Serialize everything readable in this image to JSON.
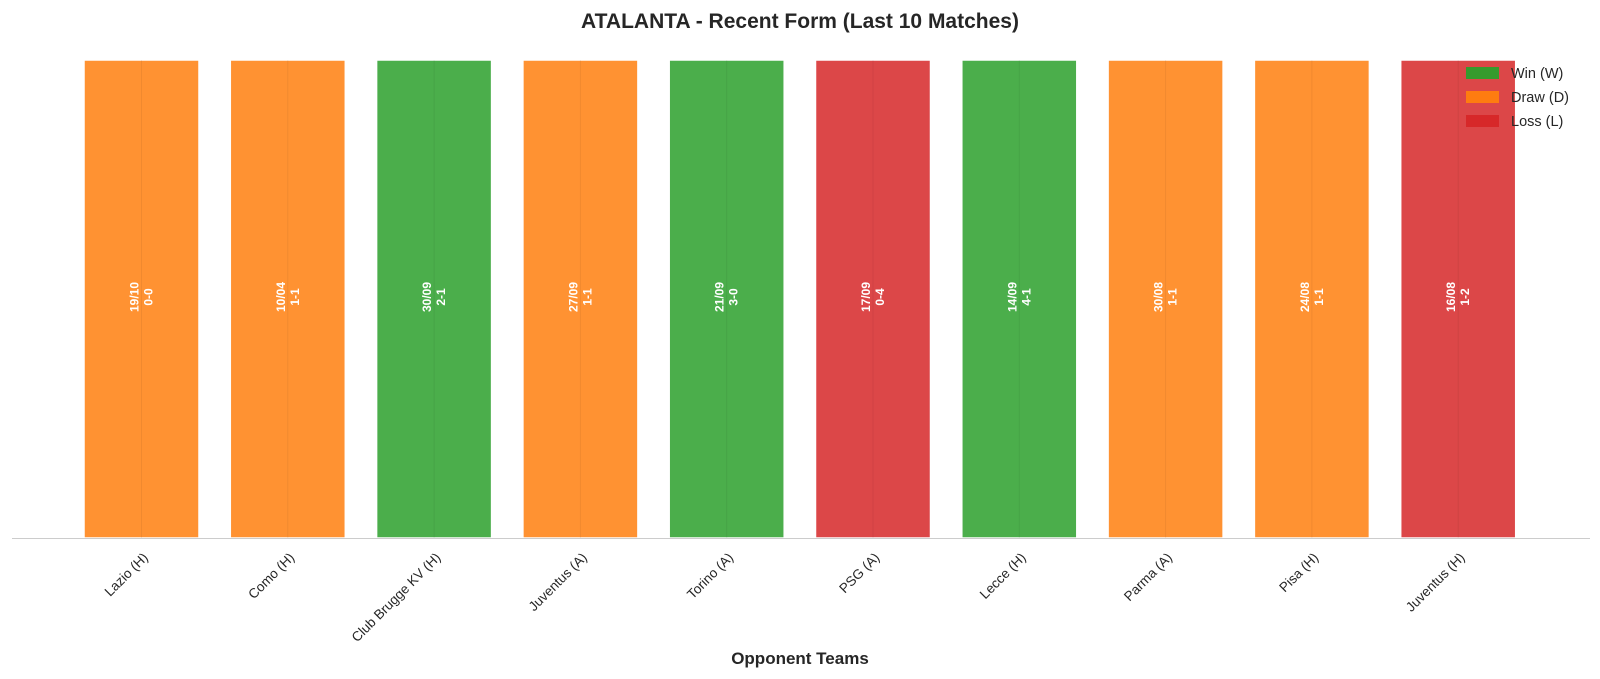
{
  "chart_data": {
    "type": "bar",
    "title": "ATALANTA - Recent Form (Last 10 Matches)",
    "xlabel": "Opponent Teams",
    "ylabel": "",
    "ylim": [
      0,
      1
    ],
    "grid": false,
    "legend_position": "top-right",
    "categories": [
      "Lazio (H)",
      "Como (H)",
      "Club Brugge KV (H)",
      "Juventus (A)",
      "Torino (A)",
      "PSG (A)",
      "Lecce (H)",
      "Parma (A)",
      "Pisa (H)",
      "Juventus (H)"
    ],
    "values": [
      1,
      1,
      1,
      1,
      1,
      1,
      1,
      1,
      1,
      1
    ],
    "results": [
      "D",
      "D",
      "W",
      "D",
      "W",
      "L",
      "W",
      "D",
      "D",
      "L"
    ],
    "dates": [
      "19/10",
      "10/04",
      "30/09",
      "27/09",
      "21/09",
      "17/09",
      "14/09",
      "30/08",
      "24/08",
      "16/08"
    ],
    "scores": [
      "0-0",
      "1-1",
      "2-1",
      "1-1",
      "3-0",
      "0-4",
      "4-1",
      "1-1",
      "1-1",
      "1-2"
    ],
    "colors": {
      "W": "#2ca02c",
      "D": "#ff7f0e",
      "L": "#d62728"
    },
    "legend": [
      {
        "key": "W",
        "label": "Win (W)"
      },
      {
        "key": "D",
        "label": "Draw (D)"
      },
      {
        "key": "L",
        "label": "Loss (L)"
      }
    ]
  }
}
